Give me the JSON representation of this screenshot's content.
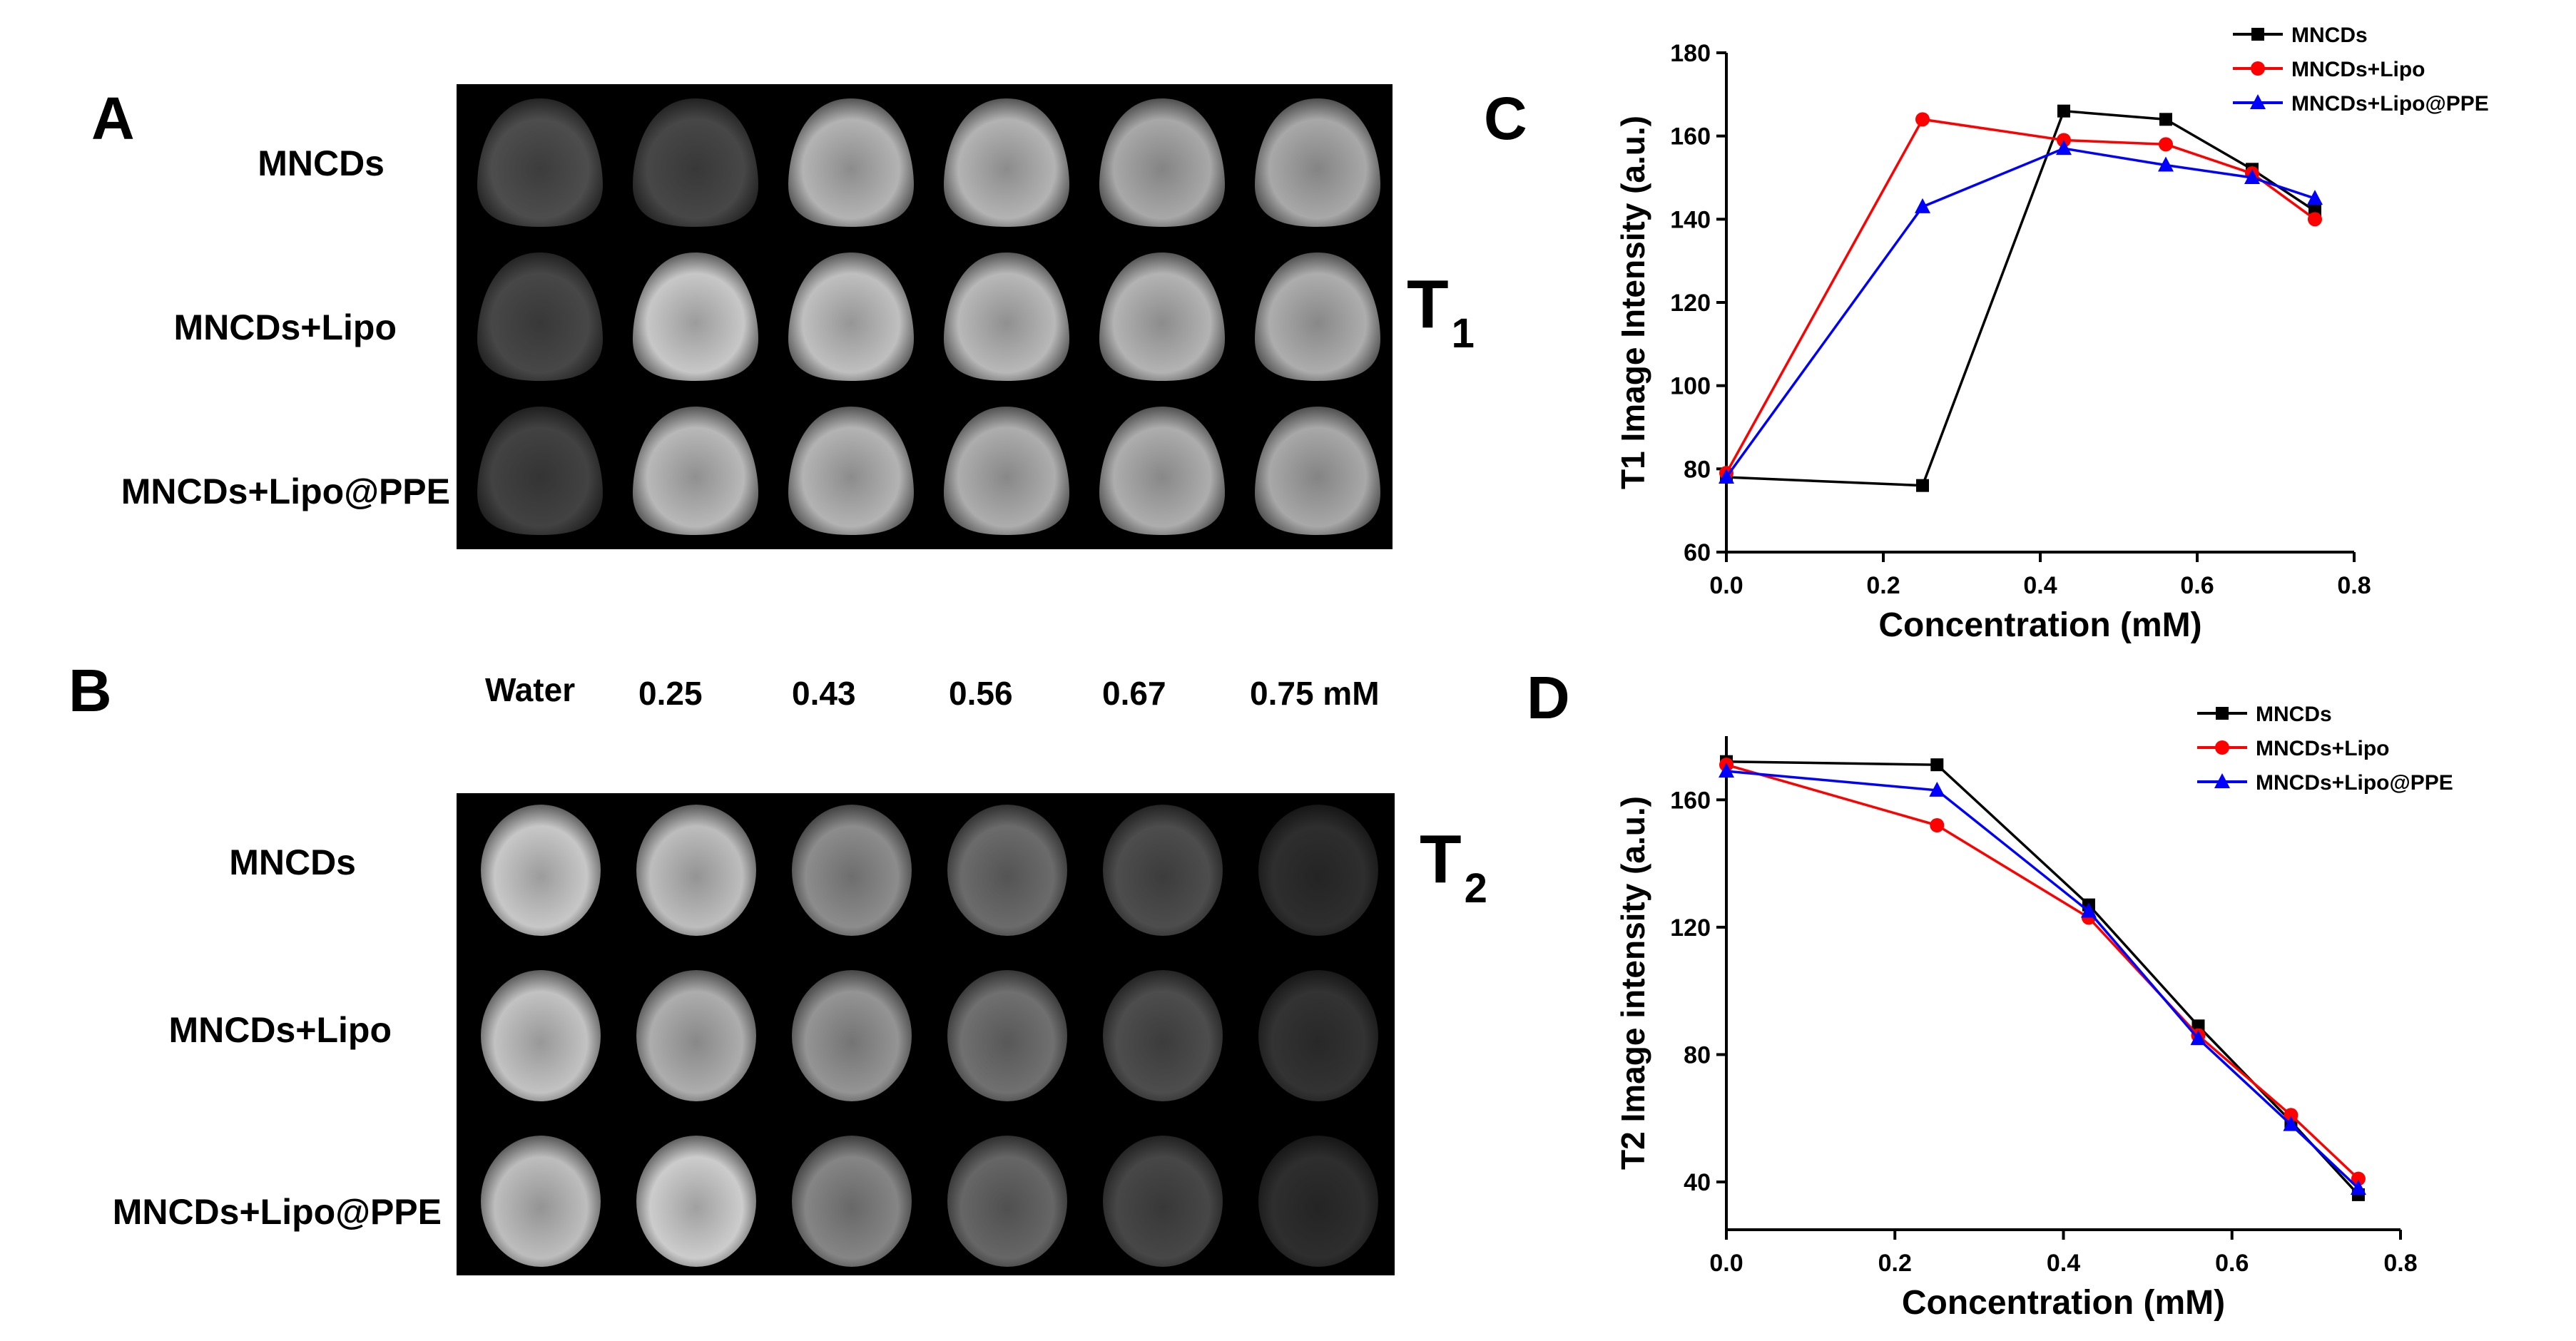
{
  "panelA": {
    "letter": "A",
    "rows": [
      "MNCDs",
      "MNCDs+Lipo",
      "MNCDs+Lipo@PPE"
    ],
    "tag": "T",
    "tag_sub": "1",
    "intensity": [
      [
        0.3,
        0.28,
        0.7,
        0.7,
        0.66,
        0.66
      ],
      [
        0.28,
        0.78,
        0.75,
        0.72,
        0.7,
        0.68
      ],
      [
        0.26,
        0.72,
        0.7,
        0.68,
        0.68,
        0.66
      ]
    ]
  },
  "panelB": {
    "letter": "B",
    "rows": [
      "MNCDs",
      "MNCDs+Lipo",
      "MNCDs+Lipo@PPE"
    ],
    "concentrations": [
      "Water",
      "0.25",
      "0.43",
      "0.56",
      "0.67",
      "0.75 mM"
    ],
    "tag": "T",
    "tag_sub": "2",
    "intensity": [
      [
        0.78,
        0.74,
        0.55,
        0.42,
        0.3,
        0.18
      ],
      [
        0.76,
        0.68,
        0.58,
        0.44,
        0.3,
        0.2
      ],
      [
        0.74,
        0.8,
        0.52,
        0.4,
        0.28,
        0.18
      ]
    ]
  },
  "chart_data": [
    {
      "panel": "C",
      "type": "line",
      "xlabel": "Concentration (mM)",
      "ylabel": "T1 Image Intensity (a.u.)",
      "xlim": [
        0.0,
        0.8
      ],
      "ylim": [
        60,
        180
      ],
      "xticks": [
        0.0,
        0.2,
        0.4,
        0.6,
        0.8
      ],
      "xtick_labels": [
        "0.0",
        "0.2",
        "0.4",
        "0.6",
        "0.8"
      ],
      "yticks": [
        60,
        80,
        100,
        120,
        140,
        160,
        180
      ],
      "ytick_labels": [
        "60",
        "80",
        "100",
        "120",
        "140",
        "160",
        "180"
      ],
      "legend_position": "top-right",
      "series": [
        {
          "name": "MNCDs",
          "color": "#000000",
          "marker": "square",
          "x": [
            0.0,
            0.25,
            0.43,
            0.56,
            0.67,
            0.75
          ],
          "y": [
            78,
            76,
            166,
            164,
            152,
            142
          ]
        },
        {
          "name": "MNCDs+Lipo",
          "color": "#ff0000",
          "marker": "circle",
          "x": [
            0.0,
            0.25,
            0.43,
            0.56,
            0.67,
            0.75
          ],
          "y": [
            79,
            164,
            159,
            158,
            151,
            140
          ]
        },
        {
          "name": "MNCDs+Lipo@PPE",
          "color": "#0000ff",
          "marker": "triangle",
          "x": [
            0.0,
            0.25,
            0.43,
            0.56,
            0.67,
            0.75
          ],
          "y": [
            78,
            143,
            157,
            153,
            150,
            145
          ]
        }
      ]
    },
    {
      "panel": "D",
      "type": "line",
      "xlabel": "Concentration (mM)",
      "ylabel": "T2 Image intensity (a.u.)",
      "xlim": [
        0.0,
        0.8
      ],
      "ylim": [
        25,
        180
      ],
      "xticks": [
        0.0,
        0.2,
        0.4,
        0.6,
        0.8
      ],
      "xtick_labels": [
        "0.0",
        "0.2",
        "0.4",
        "0.6",
        "0.8"
      ],
      "yticks": [
        40,
        80,
        120,
        160
      ],
      "ytick_labels": [
        "40",
        "80",
        "120",
        "160"
      ],
      "legend_position": "top-right",
      "series": [
        {
          "name": "MNCDs",
          "color": "#000000",
          "marker": "square",
          "x": [
            0.0,
            0.25,
            0.43,
            0.56,
            0.67,
            0.75
          ],
          "y": [
            172,
            171,
            127,
            89,
            59,
            36
          ]
        },
        {
          "name": "MNCDs+Lipo",
          "color": "#ff0000",
          "marker": "circle",
          "x": [
            0.0,
            0.25,
            0.43,
            0.56,
            0.67,
            0.75
          ],
          "y": [
            171,
            152,
            123,
            86,
            61,
            41
          ]
        },
        {
          "name": "MNCDs+Lipo@PPE",
          "color": "#0000ff",
          "marker": "triangle",
          "x": [
            0.0,
            0.25,
            0.43,
            0.56,
            0.67,
            0.75
          ],
          "y": [
            169,
            163,
            125,
            85,
            58,
            38
          ]
        }
      ]
    }
  ]
}
